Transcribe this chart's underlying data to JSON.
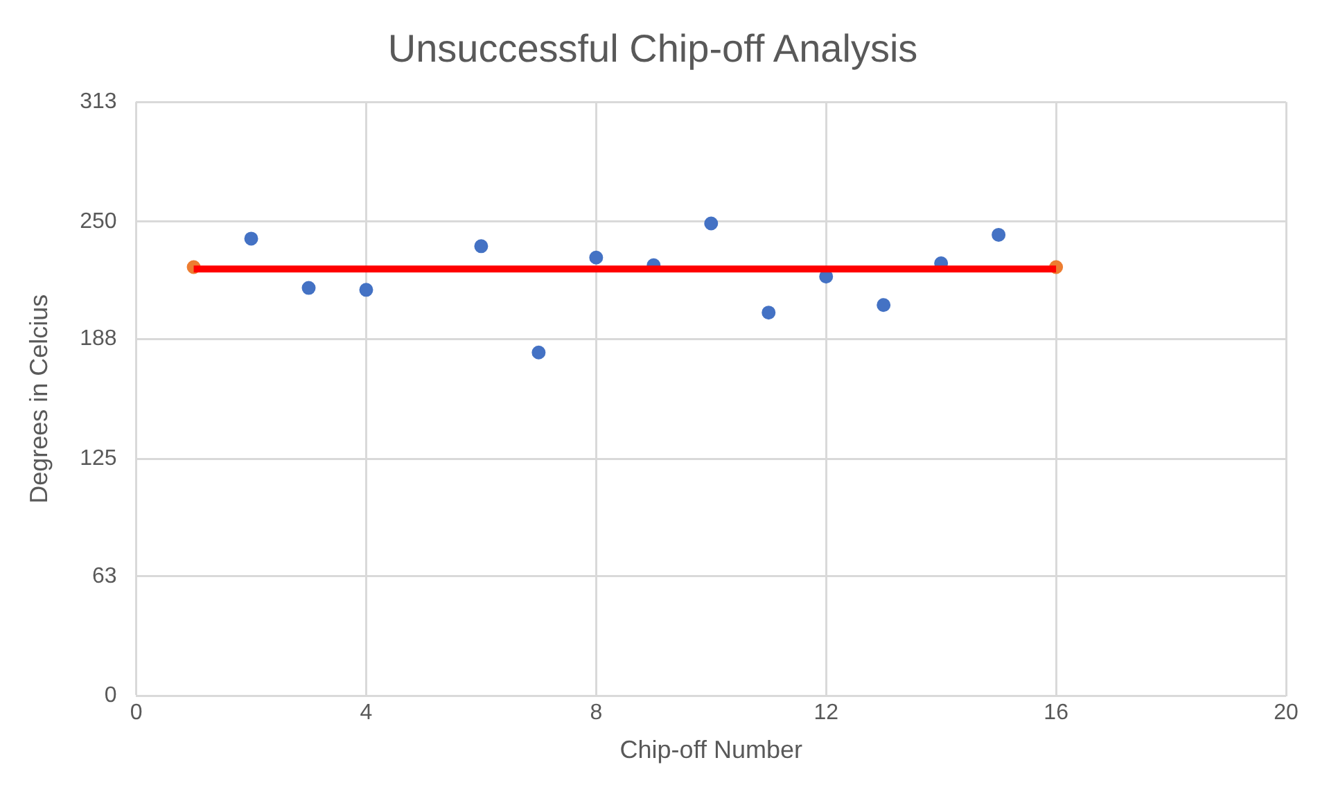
{
  "chart_data": {
    "type": "scatter",
    "title": "Unsuccessful Chip-off Analysis",
    "xlabel": "Chip-off Number",
    "ylabel": "Degrees in Celcius",
    "xlim": [
      0,
      20
    ],
    "xticks": [
      0,
      4,
      8,
      12,
      16,
      20
    ],
    "ylim": [
      0,
      313
    ],
    "yticks": [
      0,
      63,
      125,
      188,
      250,
      313
    ],
    "grid": true,
    "legend": false,
    "marker": "circle",
    "series": [
      {
        "type": "scatter",
        "color": "#4472c4",
        "x": [
          2,
          3,
          4,
          6,
          7,
          8,
          9,
          10,
          11,
          12,
          13,
          14,
          15
        ],
        "values": [
          241,
          215,
          214,
          237,
          181,
          231,
          227,
          249,
          202,
          221,
          206,
          228,
          243
        ]
      },
      {
        "type": "scatter",
        "color": "#ed7d31",
        "x": [
          1,
          16
        ],
        "values": [
          226,
          226
        ]
      },
      {
        "type": "line",
        "color": "#ff0000",
        "marker": "none",
        "line_style": "solid",
        "x": [
          1,
          16
        ],
        "values": [
          225,
          225
        ]
      }
    ]
  }
}
